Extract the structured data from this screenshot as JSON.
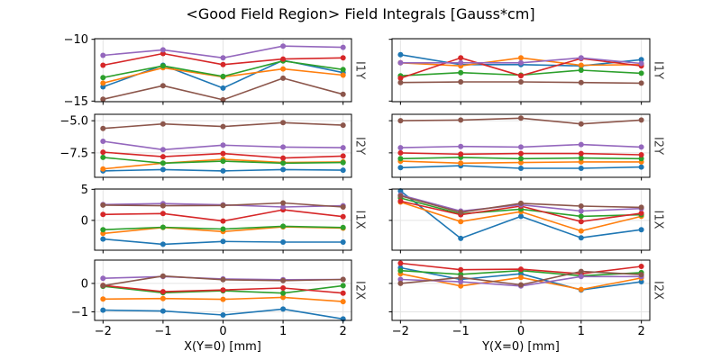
{
  "chart_data": {
    "type": "line",
    "title": "<Good Field Region> Field Integrals [Gauss*cm]",
    "grid": true,
    "legend": "none",
    "marker": "circle",
    "x": [
      -2,
      -1,
      0,
      1,
      2
    ],
    "xtick_labels": [
      "−2",
      "−1",
      "0",
      "1",
      "2"
    ],
    "columns": [
      {
        "xlabel": "X(Y=0) [mm]"
      },
      {
        "xlabel": "Y(X=0) [mm]"
      }
    ],
    "series_colors": [
      "#1f77b4",
      "#ff7f0e",
      "#2ca02c",
      "#d62728",
      "#9467bd",
      "#8c564b"
    ],
    "rows": [
      {
        "label": "I1Y",
        "ylim": [
          -15.05,
          -9.95
        ],
        "yticks": [
          -10,
          -15
        ],
        "ytick_labels": [
          "−10",
          "−15"
        ],
        "left_series": [
          [
            -13.85,
            -12.1,
            -13.95,
            -11.7,
            -12.7
          ],
          [
            -13.55,
            -12.3,
            -13.05,
            -12.4,
            -12.9
          ],
          [
            -13.1,
            -12.15,
            -13.0,
            -11.75,
            -12.45
          ],
          [
            -12.1,
            -11.15,
            -12.05,
            -11.6,
            -11.5
          ],
          [
            -11.3,
            -10.85,
            -11.5,
            -10.55,
            -10.65
          ],
          [
            -14.85,
            -13.75,
            -14.9,
            -13.15,
            -14.45
          ]
        ],
        "right_series": [
          [
            -11.25,
            -12.05,
            -12.05,
            -12.15,
            -11.65
          ],
          [
            -11.9,
            -12.15,
            -11.5,
            -12.1,
            -12.05
          ],
          [
            -12.95,
            -12.7,
            -12.9,
            -12.5,
            -12.75
          ],
          [
            -13.15,
            -11.5,
            -12.95,
            -11.55,
            -12.15
          ],
          [
            -11.9,
            -11.9,
            -11.9,
            -11.5,
            -11.95
          ],
          [
            -13.5,
            -13.45,
            -13.45,
            -13.5,
            -13.55
          ]
        ]
      },
      {
        "label": "I2Y",
        "ylim": [
          -9.4,
          -4.5
        ],
        "yticks": [
          -5.0,
          -7.5
        ],
        "ytick_labels": [
          "−5.0",
          "−7.5"
        ],
        "left_series": [
          [
            -8.9,
            -8.8,
            -8.9,
            -8.8,
            -8.85
          ],
          [
            -8.75,
            -8.3,
            -8.0,
            -8.25,
            -8.2
          ],
          [
            -7.85,
            -8.3,
            -8.15,
            -8.3,
            -8.25
          ],
          [
            -7.45,
            -7.8,
            -7.55,
            -7.9,
            -7.75
          ],
          [
            -6.6,
            -7.25,
            -6.9,
            -7.05,
            -7.1
          ],
          [
            -5.6,
            -5.25,
            -5.45,
            -5.15,
            -5.35
          ]
        ],
        "right_series": [
          [
            -8.65,
            -8.5,
            -8.7,
            -8.7,
            -8.6
          ],
          [
            -8.15,
            -8.3,
            -8.25,
            -8.2,
            -8.2
          ],
          [
            -7.95,
            -7.85,
            -7.95,
            -7.9,
            -7.95
          ],
          [
            -7.5,
            -7.6,
            -7.55,
            -7.55,
            -7.65
          ],
          [
            -7.1,
            -7.0,
            -7.05,
            -6.85,
            -7.05
          ],
          [
            -5.0,
            -4.95,
            -4.8,
            -5.25,
            -4.95
          ]
        ]
      },
      {
        "label": "I1X",
        "ylim": [
          -4.8,
          5.05
        ],
        "yticks": [
          5,
          0
        ],
        "ytick_labels": [
          "5",
          "0"
        ],
        "left_series": [
          [
            -3.0,
            -3.85,
            -3.4,
            -3.5,
            -3.5
          ],
          [
            -2.1,
            -1.15,
            -1.8,
            -1.05,
            -1.25
          ],
          [
            -1.5,
            -1.1,
            -1.4,
            -0.95,
            -1.15
          ],
          [
            0.95,
            1.1,
            -0.1,
            1.7,
            0.6
          ],
          [
            2.55,
            2.7,
            2.5,
            2.15,
            2.35
          ],
          [
            2.45,
            2.35,
            2.4,
            2.8,
            2.15
          ]
        ],
        "right_series": [
          [
            4.75,
            -2.9,
            0.65,
            -2.8,
            -1.5
          ],
          [
            2.95,
            -0.2,
            1.4,
            -1.7,
            0.65
          ],
          [
            3.6,
            1.05,
            1.8,
            0.65,
            0.9
          ],
          [
            3.1,
            0.9,
            2.3,
            -0.2,
            1.15
          ],
          [
            4.1,
            1.5,
            2.5,
            1.5,
            1.9
          ],
          [
            3.95,
            1.3,
            2.75,
            2.3,
            2.1
          ]
        ]
      },
      {
        "label": "I2X",
        "ylim": [
          -1.3,
          0.82
        ],
        "yticks": [
          0,
          -1
        ],
        "ytick_labels": [
          "0",
          "−1"
        ],
        "left_series": [
          [
            -0.94,
            -0.97,
            -1.11,
            -0.9,
            -1.25
          ],
          [
            -0.55,
            -0.53,
            -0.56,
            -0.49,
            -0.64
          ],
          [
            -0.1,
            -0.33,
            -0.26,
            -0.34,
            -0.08
          ],
          [
            -0.07,
            -0.29,
            -0.23,
            -0.16,
            -0.34
          ],
          [
            0.18,
            0.24,
            0.16,
            0.13,
            0.14
          ],
          [
            -0.08,
            0.26,
            0.13,
            0.1,
            0.14
          ]
        ],
        "right_series": [
          [
            0.55,
            0.14,
            0.34,
            -0.23,
            0.06
          ],
          [
            0.34,
            -0.09,
            0.21,
            -0.21,
            0.19
          ],
          [
            0.45,
            0.32,
            0.45,
            0.27,
            0.38
          ],
          [
            0.71,
            0.48,
            0.5,
            0.34,
            0.6
          ],
          [
            0.14,
            0.06,
            -0.09,
            0.24,
            0.24
          ],
          [
            0.0,
            0.21,
            -0.05,
            0.42,
            0.31
          ]
        ]
      }
    ]
  }
}
